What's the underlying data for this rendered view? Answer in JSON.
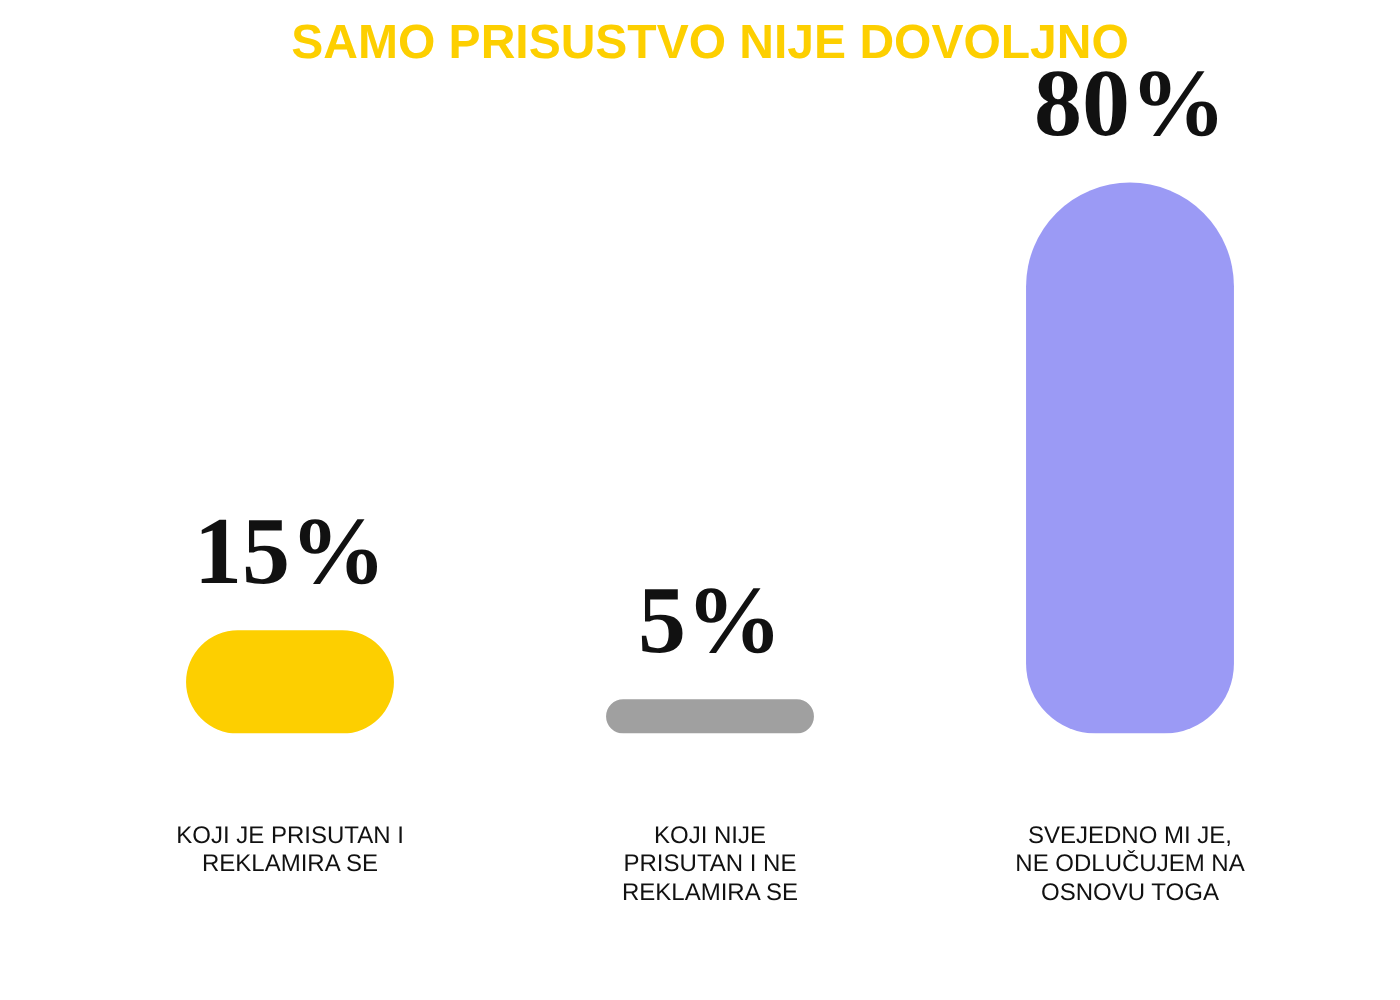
{
  "chart_data": {
    "type": "bar",
    "title": "SAMO PRISUSTVO NIJE DOVOLJNO",
    "categories": [
      "KOJI JE PRISUTAN I REKLAMIRA SE",
      "KOJI NIJE PRISUTAN I NE REKLAMIRA SE",
      "SVEJEDNO MI JE, NE ODLUČUJEM NA OSNOVU TOGA"
    ],
    "values": [
      15,
      5,
      80
    ],
    "colors": [
      "#fdcf00",
      "#a0a0a0",
      "#9b9af5"
    ],
    "value_labels": [
      "15%",
      "5%",
      "80%"
    ]
  }
}
